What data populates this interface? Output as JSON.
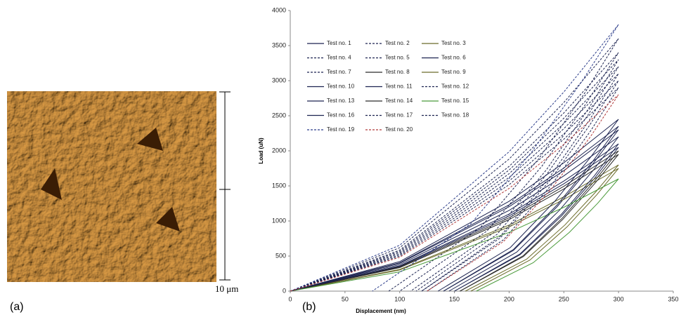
{
  "image_panel": {
    "label": "(a)",
    "scale_label": "10 μm"
  },
  "chart_data": {
    "type": "line",
    "panel_label": "(b)",
    "x_label": "Displacement (nm)",
    "y_label": "Load (uN)",
    "xlim": [
      0,
      350
    ],
    "xticks": [
      0,
      50,
      100,
      150,
      200,
      250,
      300,
      350
    ],
    "ylim": [
      0,
      4000
    ],
    "yticks": [
      0,
      500,
      1000,
      1500,
      2000,
      2500,
      3000,
      3500,
      4000
    ],
    "legend": "upper-left",
    "series": [
      {
        "name": "Test no. 1",
        "color": "#1c2350",
        "dash": false,
        "x": [
          0,
          100,
          200,
          250,
          300,
          278,
          248,
          210,
          150
        ],
        "values": [
          0,
          353,
          1072,
          1531,
          2050,
          1607,
          1074,
          519,
          0
        ]
      },
      {
        "name": "Test no. 2",
        "color": "#1c2350",
        "dash": true,
        "x": [
          0,
          100,
          200,
          250,
          300,
          269,
          227,
          174,
          90
        ],
        "values": [
          0,
          619,
          1883,
          2689,
          3600,
          2822,
          1886,
          911,
          0
        ]
      },
      {
        "name": "Test no. 3",
        "color": "#6b6b2a",
        "dash": false,
        "x": [
          0,
          100,
          200,
          250,
          300,
          279,
          251,
          216,
          160
        ],
        "values": [
          0,
          310,
          941,
          1345,
          1800,
          1411,
          943,
          455,
          0
        ]
      },
      {
        "name": "Test no. 4",
        "color": "#1c2350",
        "dash": true,
        "x": [
          0,
          100,
          200,
          250,
          300,
          270,
          230,
          180,
          100
        ],
        "values": [
          0,
          585,
          1778,
          2540,
          3400,
          2666,
          1782,
          860,
          0
        ]
      },
      {
        "name": "Test no. 5",
        "color": "#1c2350",
        "dash": true,
        "x": [
          0,
          100,
          200,
          250,
          300,
          273,
          237,
          192,
          120
        ],
        "values": [
          0,
          516,
          1569,
          2241,
          3000,
          2352,
          1572,
          759,
          0
        ]
      },
      {
        "name": "Test no. 6",
        "color": "#1c2350",
        "dash": false,
        "x": [
          0,
          100,
          200,
          250,
          300,
          276,
          244,
          204,
          140
        ],
        "values": [
          0,
          396,
          1203,
          1718,
          2300,
          1803,
          1205,
          582,
          0
        ]
      },
      {
        "name": "Test no. 7",
        "color": "#1c2350",
        "dash": true,
        "x": [
          0,
          100,
          200,
          250,
          300,
          272,
          234,
          186,
          110
        ],
        "values": [
          0,
          568,
          1726,
          2465,
          3300,
          2587,
          1729,
          835,
          0
        ]
      },
      {
        "name": "Test no. 8",
        "color": "#2a2a2a",
        "dash": false,
        "x": [
          0,
          100,
          200,
          250,
          300,
          278,
          249,
          213,
          155
        ],
        "values": [
          0,
          344,
          1046,
          1494,
          2000,
          1568,
          1048,
          506,
          0
        ]
      },
      {
        "name": "Test no. 9",
        "color": "#6b6b2a",
        "dash": false,
        "x": [
          0,
          100,
          200,
          250,
          300,
          280,
          253,
          219,
          165
        ],
        "values": [
          0,
          301,
          915,
          1307,
          1750,
          1372,
          917,
          443,
          0
        ]
      },
      {
        "name": "Test no. 10",
        "color": "#1c2350",
        "dash": false,
        "x": [
          0,
          100,
          200,
          250,
          300,
          275,
          242,
          201,
          135
        ],
        "values": [
          0,
          421,
          1281,
          1830,
          2450,
          1921,
          1284,
          620,
          0
        ]
      },
      {
        "name": "Test no. 11",
        "color": "#1c2350",
        "dash": false,
        "x": [
          0,
          100,
          200,
          250,
          300,
          278,
          248,
          210,
          150
        ],
        "values": [
          0,
          361,
          1098,
          1569,
          2100,
          1646,
          1100,
          531,
          0
        ]
      },
      {
        "name": "Test no. 12",
        "color": "#1c2350",
        "dash": true,
        "x": [
          0,
          100,
          200,
          250,
          300,
          274,
          239,
          195,
          125
        ],
        "values": [
          0,
          499,
          1517,
          2166,
          2900,
          2274,
          1520,
          734,
          0
        ]
      },
      {
        "name": "Test no. 13",
        "color": "#1c2350",
        "dash": false,
        "x": [
          0,
          100,
          200,
          250,
          300,
          277,
          246,
          207,
          145
        ],
        "values": [
          0,
          378,
          1151,
          1643,
          2200,
          1725,
          1153,
          557,
          0
        ]
      },
      {
        "name": "Test no. 14",
        "color": "#2a2a2a",
        "dash": false,
        "x": [
          0,
          100,
          200,
          250,
          300,
          278,
          249,
          213,
          155
        ],
        "values": [
          0,
          335,
          1020,
          1457,
          1950,
          1529,
          1022,
          493,
          0
        ]
      },
      {
        "name": "Test no. 15",
        "color": "#4a9a3a",
        "dash": false,
        "x": [
          0,
          100,
          200,
          250,
          300,
          281,
          255,
          222,
          170
        ],
        "values": [
          0,
          275,
          837,
          1195,
          1600,
          1254,
          838,
          405,
          0
        ]
      },
      {
        "name": "Test no. 16",
        "color": "#1c2350",
        "dash": false,
        "x": [
          0,
          100,
          200,
          250,
          300,
          276,
          244,
          204,
          140
        ],
        "values": [
          0,
          404,
          1229,
          1755,
          2350,
          1842,
          1231,
          595,
          0
        ]
      },
      {
        "name": "Test no. 17",
        "color": "#1c2350",
        "dash": true,
        "x": [
          0,
          100,
          200,
          250,
          300,
          272,
          235,
          189,
          115
        ],
        "values": [
          0,
          550,
          1674,
          2390,
          3200,
          2509,
          1677,
          810,
          0
        ]
      },
      {
        "name": "Test no. 18",
        "color": "#1c2350",
        "dash": true,
        "x": [
          0,
          100,
          200,
          250,
          300,
          273,
          237,
          192,
          120
        ],
        "values": [
          0,
          533,
          1621,
          2316,
          3100,
          2430,
          1624,
          784,
          0
        ]
      },
      {
        "name": "Test no. 19",
        "color": "#2b3c8a",
        "dash": true,
        "x": [
          0,
          100,
          200,
          250,
          300,
          266,
          221,
          165,
          75
        ],
        "values": [
          0,
          654,
          1987,
          2839,
          3800,
          2979,
          1991,
          961,
          0
        ]
      },
      {
        "name": "Test no. 20",
        "color": "#b03a3a",
        "dash": true,
        "x": [
          0,
          100,
          200,
          250,
          300,
          274,
          239,
          195,
          125
        ],
        "values": [
          0,
          482,
          1464,
          2092,
          2800,
          2195,
          1467,
          708,
          0
        ]
      }
    ]
  }
}
